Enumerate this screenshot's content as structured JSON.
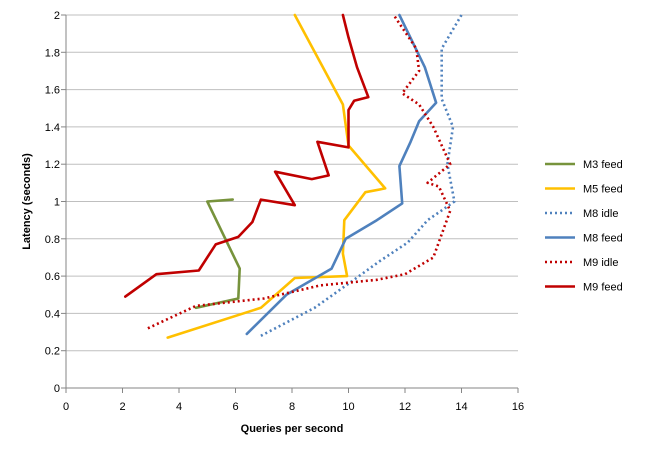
{
  "chart_data": {
    "type": "line",
    "title": "",
    "xlabel": "Queries per second",
    "ylabel": "Latency (seconds)",
    "xlim": [
      0,
      16
    ],
    "ylim": [
      0,
      2
    ],
    "xticks": [
      "0",
      "2",
      "4",
      "6",
      "8",
      "10",
      "12",
      "14",
      "16"
    ],
    "yticks": [
      "0",
      "0.2",
      "0.4",
      "0.6",
      "0.8",
      "1",
      "1.2",
      "1.4",
      "1.6",
      "1.8",
      "2"
    ],
    "grid": "horizontal",
    "legend_position": "right",
    "series": [
      {
        "name": "M3 feed",
        "color": "#77933c",
        "dash": "solid",
        "points": [
          [
            4.6,
            0.43
          ],
          [
            6.1,
            0.48
          ],
          [
            6.15,
            0.64
          ],
          [
            5,
            1.0
          ],
          [
            5.9,
            1.01
          ]
        ]
      },
      {
        "name": "M5 feed",
        "color": "#ffc000",
        "dash": "solid",
        "points": [
          [
            3.6,
            0.27
          ],
          [
            6.9,
            0.43
          ],
          [
            8.1,
            0.59
          ],
          [
            9.95,
            0.6
          ],
          [
            9.8,
            0.72
          ],
          [
            9.85,
            0.9
          ],
          [
            10.6,
            1.05
          ],
          [
            11.3,
            1.07
          ],
          [
            10,
            1.3
          ],
          [
            9.8,
            1.52
          ],
          [
            8.1,
            2.0
          ]
        ]
      },
      {
        "name": "M8 idle",
        "color": "#4f81bd",
        "dash": "dotted",
        "points": [
          [
            6.9,
            0.28
          ],
          [
            8.8,
            0.43
          ],
          [
            10.1,
            0.57
          ],
          [
            11.1,
            0.68
          ],
          [
            12.1,
            0.78
          ],
          [
            12.8,
            0.9
          ],
          [
            13.75,
            1.0
          ],
          [
            13.5,
            1.2
          ],
          [
            13.7,
            1.4
          ],
          [
            13.3,
            1.55
          ],
          [
            13.3,
            1.82
          ],
          [
            14,
            2.0
          ]
        ]
      },
      {
        "name": "M8 feed",
        "color": "#4f81bd",
        "dash": "solid",
        "points": [
          [
            6.4,
            0.29
          ],
          [
            7.8,
            0.5
          ],
          [
            9.4,
            0.64
          ],
          [
            9.9,
            0.8
          ],
          [
            11,
            0.9
          ],
          [
            11.9,
            0.99
          ],
          [
            11.8,
            1.19
          ],
          [
            12.2,
            1.32
          ],
          [
            12.5,
            1.43
          ],
          [
            13.1,
            1.53
          ],
          [
            12.7,
            1.72
          ],
          [
            11.8,
            2.0
          ]
        ]
      },
      {
        "name": "M9 idle",
        "color": "#c00000",
        "dash": "dotted",
        "points": [
          [
            2.9,
            0.32
          ],
          [
            4.6,
            0.44
          ],
          [
            7,
            0.48
          ],
          [
            9,
            0.55
          ],
          [
            11,
            0.58
          ],
          [
            12,
            0.61
          ],
          [
            13,
            0.7
          ],
          [
            13.6,
            0.95
          ],
          [
            13.2,
            1.08
          ],
          [
            12.8,
            1.1
          ],
          [
            13.6,
            1.2
          ],
          [
            13,
            1.4
          ],
          [
            12.5,
            1.52
          ],
          [
            11.9,
            1.58
          ],
          [
            12.5,
            1.7
          ],
          [
            12.4,
            1.82
          ],
          [
            11.6,
            2.0
          ]
        ]
      },
      {
        "name": "M9 feed",
        "color": "#c00000",
        "dash": "solid",
        "points": [
          [
            2.1,
            0.49
          ],
          [
            3.2,
            0.61
          ],
          [
            4.7,
            0.63
          ],
          [
            5.3,
            0.77
          ],
          [
            6.1,
            0.81
          ],
          [
            6.6,
            0.89
          ],
          [
            6.9,
            1.01
          ],
          [
            8.1,
            0.98
          ],
          [
            7.4,
            1.16
          ],
          [
            8.7,
            1.12
          ],
          [
            9.3,
            1.14
          ],
          [
            8.9,
            1.32
          ],
          [
            10,
            1.29
          ],
          [
            10,
            1.49
          ],
          [
            10.2,
            1.54
          ],
          [
            10.7,
            1.56
          ],
          [
            10.3,
            1.72
          ],
          [
            10,
            1.88
          ],
          [
            9.8,
            2.0
          ]
        ]
      }
    ]
  }
}
